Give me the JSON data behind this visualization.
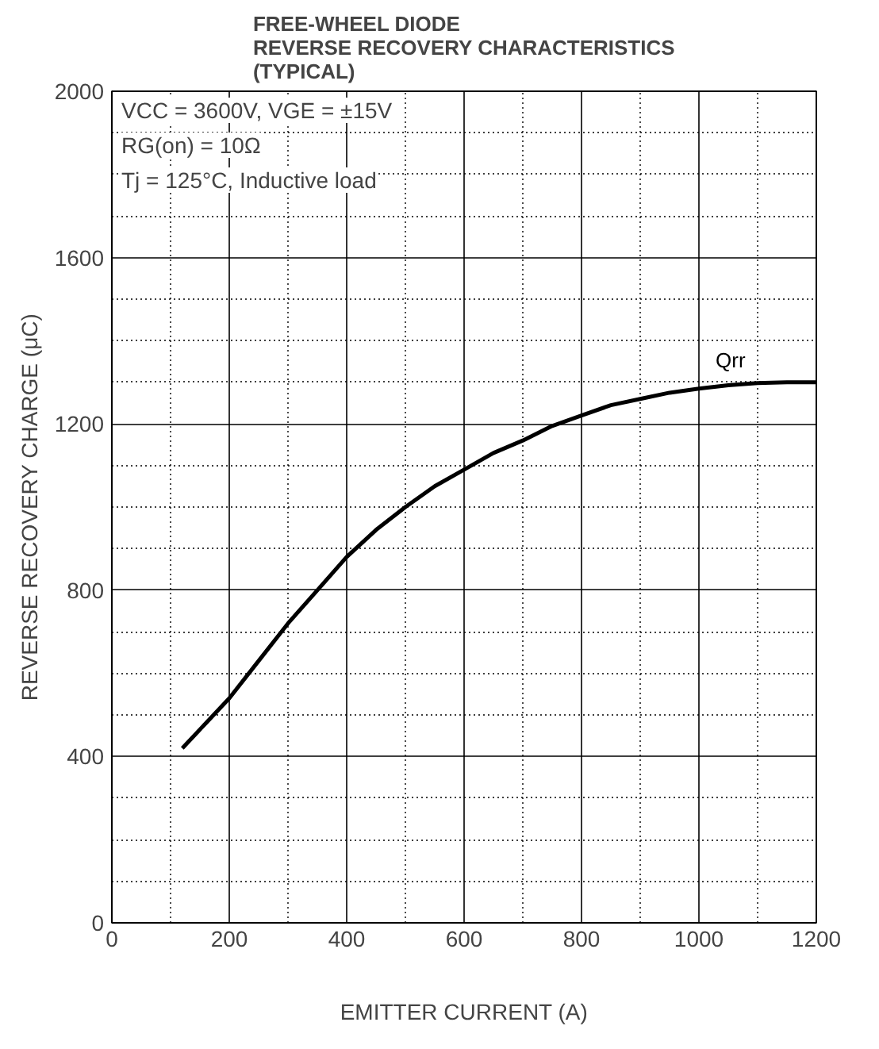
{
  "chart_data": {
    "type": "line",
    "title": "FREE-WHEEL DIODE\nREVERSE RECOVERY CHARACTERISTICS\n(TYPICAL)",
    "xlabel": "EMITTER CURRENT (A)",
    "ylabel": "REVERSE RECOVERY CHARGE (μC)",
    "annotations": [
      "VCC = 3600V, VGE = ±15V",
      "RG(on) = 10Ω",
      "Tj = 125°C, Inductive load"
    ],
    "series": [
      {
        "name": "Qrr",
        "color": "#000000",
        "x": [
          120,
          160,
          200,
          250,
          300,
          350,
          400,
          450,
          500,
          550,
          600,
          650,
          700,
          750,
          800,
          850,
          900,
          950,
          1000,
          1050,
          1100,
          1150,
          1200
        ],
        "values": [
          420,
          480,
          540,
          630,
          720,
          800,
          880,
          945,
          1000,
          1050,
          1090,
          1130,
          1160,
          1195,
          1220,
          1245,
          1260,
          1275,
          1285,
          1293,
          1298,
          1300,
          1300
        ]
      }
    ],
    "xlim": [
      0,
      1200
    ],
    "ylim": [
      0,
      2000
    ],
    "xticks": [
      0,
      200,
      400,
      600,
      800,
      1000,
      1200
    ],
    "yticks": [
      0,
      400,
      800,
      1200,
      1600,
      2000
    ],
    "grid": true,
    "marker": "none",
    "line_style": "solid"
  }
}
